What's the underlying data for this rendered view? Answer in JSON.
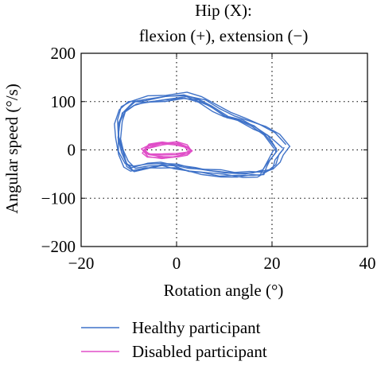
{
  "chart_data": {
    "type": "line",
    "title_line1": "Hip (X):",
    "title_line2": "flexion (+), extension (−)",
    "xlabel": "Rotation angle (°)",
    "ylabel": "Angular speed (°/s)",
    "xlim": [
      -20,
      40
    ],
    "ylim": [
      -200,
      200
    ],
    "xticks": [
      -20,
      0,
      20,
      40
    ],
    "xtick_labels": [
      "−20",
      "0",
      "20",
      "40"
    ],
    "yticks": [
      -200,
      -100,
      0,
      100,
      200
    ],
    "ytick_labels": [
      "−200",
      "−100",
      "0",
      "100",
      "200"
    ],
    "grid": "dotted at major ticks",
    "legend_position": "below plot",
    "series": [
      {
        "name": "Healthy participant",
        "color": "#3f72c8",
        "loops": 6,
        "points": [
          [
            22,
            5
          ],
          [
            20,
            30
          ],
          [
            17,
            48
          ],
          [
            14,
            60
          ],
          [
            11,
            70
          ],
          [
            8,
            86
          ],
          [
            5,
            100
          ],
          [
            2,
            108
          ],
          [
            -2,
            105
          ],
          [
            -6,
            101
          ],
          [
            -9,
            96
          ],
          [
            -11,
            80
          ],
          [
            -12,
            55
          ],
          [
            -12,
            25
          ],
          [
            -11.5,
            -5
          ],
          [
            -10.5,
            -28
          ],
          [
            -9,
            -38
          ],
          [
            -6,
            -33
          ],
          [
            -3,
            -30
          ],
          [
            0,
            -32
          ],
          [
            3,
            -38
          ],
          [
            6,
            -43
          ],
          [
            10,
            -47
          ],
          [
            14,
            -49
          ],
          [
            17,
            -48
          ],
          [
            19,
            -44
          ],
          [
            20,
            -30
          ],
          [
            21,
            -15
          ],
          [
            22,
            0
          ],
          [
            22,
            5
          ]
        ]
      },
      {
        "name": "Disabled participant",
        "color": "#e04fc8",
        "loops": 6,
        "points": [
          [
            3,
            0
          ],
          [
            2,
            10
          ],
          [
            0,
            16
          ],
          [
            -3,
            16
          ],
          [
            -6,
            10
          ],
          [
            -7,
            0
          ],
          [
            -6,
            -9
          ],
          [
            -3,
            -13
          ],
          [
            0,
            -12
          ],
          [
            2,
            -7
          ],
          [
            3,
            0
          ]
        ]
      }
    ]
  }
}
